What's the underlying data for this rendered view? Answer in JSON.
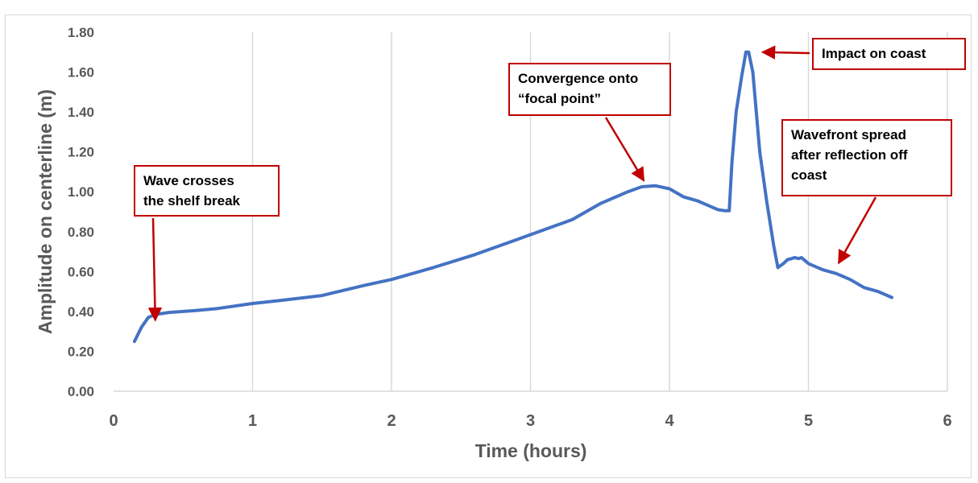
{
  "chart_data": {
    "type": "line",
    "xlabel": "Time (hours)",
    "ylabel": "Amplitude on centerline (m)",
    "xlim": [
      0,
      6
    ],
    "ylim": [
      0,
      1.8
    ],
    "x_ticks": [
      "0",
      "1",
      "2",
      "3",
      "4",
      "5",
      "6"
    ],
    "y_ticks": [
      "0.00",
      "0.20",
      "0.40",
      "0.60",
      "0.80",
      "1.00",
      "1.20",
      "1.40",
      "1.60",
      "1.80"
    ],
    "grid": "vertical",
    "colors": {
      "line": "#4472c4",
      "annotation": "#c00000"
    },
    "series": [
      {
        "x": [
          0.15,
          0.2,
          0.25,
          0.3,
          0.4,
          0.5,
          0.6,
          0.75,
          1.0,
          1.2,
          1.5,
          1.8,
          2.0,
          2.3,
          2.6,
          2.9,
          3.1,
          3.3,
          3.5,
          3.7,
          3.8,
          3.9,
          4.0,
          4.1,
          4.2,
          4.3,
          4.35,
          4.4,
          4.43,
          4.45,
          4.48,
          4.52,
          4.55,
          4.57,
          4.6,
          4.65,
          4.7,
          4.75,
          4.78,
          4.8,
          4.82,
          4.85,
          4.88,
          4.9,
          4.93,
          4.95,
          5.0,
          5.1,
          5.2,
          5.3,
          5.4,
          5.5,
          5.6
        ],
        "y": [
          0.25,
          0.32,
          0.37,
          0.385,
          0.395,
          0.4,
          0.405,
          0.415,
          0.44,
          0.455,
          0.48,
          0.53,
          0.56,
          0.62,
          0.685,
          0.76,
          0.81,
          0.86,
          0.94,
          1.0,
          1.025,
          1.03,
          1.015,
          0.975,
          0.955,
          0.925,
          0.91,
          0.905,
          0.905,
          1.15,
          1.4,
          1.58,
          1.7,
          1.7,
          1.6,
          1.2,
          0.95,
          0.73,
          0.62,
          0.63,
          0.64,
          0.66,
          0.665,
          0.67,
          0.665,
          0.67,
          0.64,
          0.61,
          0.59,
          0.56,
          0.52,
          0.5,
          0.47
        ]
      }
    ],
    "annotations": [
      {
        "text": "Wave crosses\nthe shelf break",
        "points_to": [
          0.3,
          0.38
        ]
      },
      {
        "text": "Convergence onto\n“focal point”",
        "points_to": [
          3.85,
          1.04
        ]
      },
      {
        "text": "Impact on coast",
        "points_to": [
          4.6,
          1.7
        ]
      },
      {
        "text": "Wavefront spread\nafter reflection off\ncoast",
        "points_to": [
          5.2,
          0.63
        ]
      }
    ]
  }
}
